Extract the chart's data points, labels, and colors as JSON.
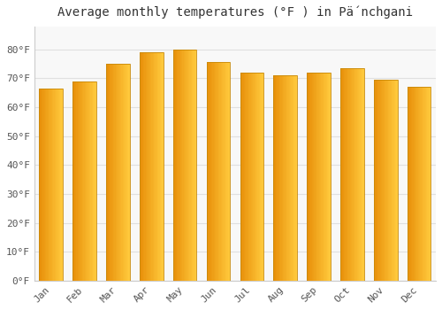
{
  "title": "Average monthly temperatures (°F ) in Pä́nchgani",
  "months": [
    "Jan",
    "Feb",
    "Mar",
    "Apr",
    "May",
    "Jun",
    "Jul",
    "Aug",
    "Sep",
    "Oct",
    "Nov",
    "Dec"
  ],
  "values": [
    66.5,
    69,
    75,
    79,
    80,
    75.5,
    72,
    71,
    72,
    73.5,
    69.5,
    67
  ],
  "bar_color_left": "#E8900A",
  "bar_color_right": "#FFC93C",
  "bar_edge_color": "#C8890A",
  "background_color": "#FFFFFF",
  "plot_bg_color": "#F8F8F8",
  "grid_color": "#E0E0E0",
  "text_color": "#555555",
  "title_color": "#333333",
  "ylim": [
    0,
    88
  ],
  "yticks": [
    0,
    10,
    20,
    30,
    40,
    50,
    60,
    70,
    80
  ],
  "ytick_labels": [
    "0°F",
    "10°F",
    "20°F",
    "30°F",
    "40°F",
    "50°F",
    "60°F",
    "70°F",
    "80°F"
  ],
  "title_fontsize": 10,
  "tick_fontsize": 8,
  "figsize": [
    5.0,
    3.5
  ],
  "dpi": 100
}
